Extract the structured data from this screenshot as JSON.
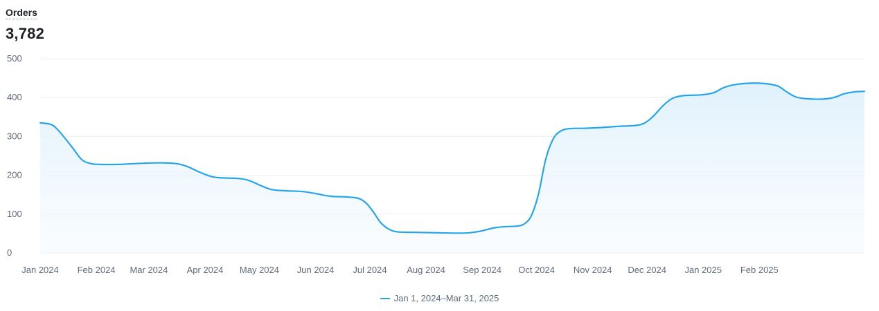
{
  "metric": {
    "label": "Orders",
    "value": "3,782"
  },
  "colors": {
    "line": "#27a5e8",
    "fill": "#e8f5fd",
    "grid": "#eceff2",
    "axis_text": "#5f6b7a"
  },
  "chart_data": {
    "type": "area",
    "title": "",
    "xlabel": "",
    "ylabel": "",
    "ylim": [
      0,
      500
    ],
    "yticks": [
      0,
      100,
      200,
      300,
      400,
      500
    ],
    "grid": true,
    "legend_position": "bottom-center",
    "x_ticks": [
      "Jan 2024",
      "Feb 2024",
      "Mar 2024",
      "Apr 2024",
      "May 2024",
      "Jun 2024",
      "Jul 2024",
      "Aug 2024",
      "Sep 2024",
      "Oct 2024",
      "Nov 2024",
      "Dec 2024",
      "Jan 2025",
      "Feb 2025"
    ],
    "series": [
      {
        "name": "Jan 1, 2024–Mar 31, 2025",
        "points": [
          [
            "2024-01-01",
            335
          ],
          [
            "2024-01-06",
            332
          ],
          [
            "2024-01-09",
            325
          ],
          [
            "2024-01-13",
            305
          ],
          [
            "2024-01-19",
            270
          ],
          [
            "2024-01-24",
            240
          ],
          [
            "2024-01-29",
            230
          ],
          [
            "2024-02-03",
            228
          ],
          [
            "2024-02-13",
            228
          ],
          [
            "2024-02-27",
            231
          ],
          [
            "2024-03-08",
            232
          ],
          [
            "2024-03-16",
            230
          ],
          [
            "2024-03-22",
            223
          ],
          [
            "2024-03-29",
            208
          ],
          [
            "2024-04-05",
            196
          ],
          [
            "2024-04-12",
            193
          ],
          [
            "2024-04-19",
            192
          ],
          [
            "2024-04-25",
            187
          ],
          [
            "2024-05-02",
            173
          ],
          [
            "2024-05-08",
            163
          ],
          [
            "2024-05-16",
            160
          ],
          [
            "2024-05-25",
            158
          ],
          [
            "2024-06-01",
            153
          ],
          [
            "2024-06-09",
            146
          ],
          [
            "2024-06-19",
            144
          ],
          [
            "2024-06-25",
            140
          ],
          [
            "2024-06-29",
            128
          ],
          [
            "2024-07-03",
            105
          ],
          [
            "2024-07-07",
            78
          ],
          [
            "2024-07-12",
            60
          ],
          [
            "2024-07-17",
            54
          ],
          [
            "2024-07-26",
            53
          ],
          [
            "2024-08-07",
            52
          ],
          [
            "2024-08-19",
            51
          ],
          [
            "2024-08-25",
            52
          ],
          [
            "2024-08-31",
            56
          ],
          [
            "2024-09-08",
            65
          ],
          [
            "2024-09-15",
            68
          ],
          [
            "2024-09-20",
            69
          ],
          [
            "2024-09-24",
            74
          ],
          [
            "2024-09-28",
            95
          ],
          [
            "2024-10-02",
            150
          ],
          [
            "2024-10-06",
            240
          ],
          [
            "2024-10-10",
            292
          ],
          [
            "2024-10-14",
            313
          ],
          [
            "2024-10-19",
            320
          ],
          [
            "2024-10-28",
            321
          ],
          [
            "2024-11-06",
            323
          ],
          [
            "2024-11-15",
            326
          ],
          [
            "2024-11-24",
            328
          ],
          [
            "2024-11-29",
            333
          ],
          [
            "2024-12-04",
            350
          ],
          [
            "2024-12-10",
            380
          ],
          [
            "2024-12-15",
            398
          ],
          [
            "2024-12-21",
            405
          ],
          [
            "2024-12-31",
            407
          ],
          [
            "2025-01-07",
            413
          ],
          [
            "2025-01-12",
            425
          ],
          [
            "2025-01-18",
            433
          ],
          [
            "2025-01-27",
            437
          ],
          [
            "2025-02-04",
            436
          ],
          [
            "2025-02-11",
            430
          ],
          [
            "2025-02-16",
            415
          ],
          [
            "2025-02-21",
            402
          ],
          [
            "2025-02-27",
            397
          ],
          [
            "2025-03-08",
            396
          ],
          [
            "2025-03-14",
            400
          ],
          [
            "2025-03-20",
            410
          ],
          [
            "2025-03-26",
            415
          ],
          [
            "2025-03-31",
            416
          ]
        ]
      }
    ]
  }
}
